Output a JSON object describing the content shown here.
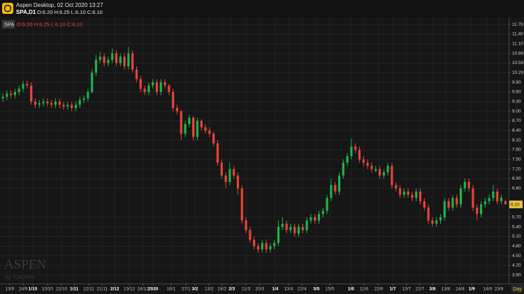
{
  "header": {
    "app_title": "Aspen Desktop, 02 Oct 2020 13:27",
    "symbol": "SPA,D1",
    "ohlc": "O:6.20 H:6.25 L:6.10 C:6.10"
  },
  "legend": {
    "symbol": "SPA",
    "ohlc": "O:6.20 H:6.25 L:6.10 C:6.10"
  },
  "watermark": {
    "brand": "ASPEN",
    "by": "by ThaiQuest"
  },
  "period": "Day",
  "chart_data": {
    "type": "candlestick",
    "up_color": "#1fb34a",
    "down_color": "#e8443a",
    "grid": true,
    "ylim": [
      3.68,
      11.92
    ],
    "yticks": [
      {
        "value": 3.9,
        "label": "3.90"
      },
      {
        "value": 4.2,
        "label": "4.20"
      },
      {
        "value": 4.5,
        "label": "4.50"
      },
      {
        "value": 4.8,
        "label": "4.80"
      },
      {
        "value": 5.1,
        "label": "5.10"
      },
      {
        "value": 5.4,
        "label": "5.40"
      },
      {
        "value": 5.7,
        "label": "5.70"
      },
      {
        "value": 6.6,
        "label": "6.60"
      },
      {
        "value": 6.9,
        "label": "6.90"
      },
      {
        "value": 7.2,
        "label": "7.20"
      },
      {
        "value": 7.5,
        "label": "7.50"
      },
      {
        "value": 7.8,
        "label": "7.80"
      },
      {
        "value": 8.1,
        "label": "8.10"
      },
      {
        "value": 8.4,
        "label": "8.40"
      },
      {
        "value": 8.7,
        "label": "8.70"
      },
      {
        "value": 9,
        "label": "9.00"
      },
      {
        "value": 9.3,
        "label": "9.30"
      },
      {
        "value": 9.6,
        "label": "9.60"
      },
      {
        "value": 9.9,
        "label": "9.90"
      },
      {
        "value": 10.2,
        "label": "10.20"
      },
      {
        "value": 10.5,
        "label": "10.50"
      },
      {
        "value": 10.8,
        "label": "10.80"
      },
      {
        "value": 11.1,
        "label": "11.10"
      },
      {
        "value": 11.4,
        "label": "11.40"
      },
      {
        "value": 11.7,
        "label": "11.70"
      }
    ],
    "last_price": {
      "value": 6.1,
      "label": "6.10"
    },
    "xlim": [
      -0.7,
      124.8
    ],
    "xticks": [
      {
        "value": 1.7,
        "label": "13/9"
      },
      {
        "value": 5,
        "label": "24/9"
      },
      {
        "value": 7.4,
        "label": "1/10",
        "bold": true
      },
      {
        "value": 11,
        "label": "10/10"
      },
      {
        "value": 14.5,
        "label": "22/10"
      },
      {
        "value": 17.6,
        "label": "1/11",
        "bold": true
      },
      {
        "value": 21.2,
        "label": "12/11"
      },
      {
        "value": 24.5,
        "label": "21/11"
      },
      {
        "value": 27.6,
        "label": "2/12",
        "bold": true
      },
      {
        "value": 31.2,
        "label": "13/12"
      },
      {
        "value": 34.6,
        "label": "24/12"
      },
      {
        "value": 37.1,
        "label": "2020",
        "bold": true
      },
      {
        "value": 41.5,
        "label": "16/1"
      },
      {
        "value": 45.2,
        "label": "27/1"
      },
      {
        "value": 47.4,
        "label": "3/2",
        "bold": true
      },
      {
        "value": 50.9,
        "label": "13/2"
      },
      {
        "value": 54.1,
        "label": "24/2"
      },
      {
        "value": 56.5,
        "label": "2/3",
        "bold": true
      },
      {
        "value": 60,
        "label": "11/3"
      },
      {
        "value": 63.4,
        "label": "20/3"
      },
      {
        "value": 67.2,
        "label": "1/4",
        "bold": true
      },
      {
        "value": 70.5,
        "label": "13/4"
      },
      {
        "value": 73.8,
        "label": "22/4"
      },
      {
        "value": 77.4,
        "label": "5/5",
        "bold": true
      },
      {
        "value": 80.7,
        "label": "15/5"
      },
      {
        "value": 85.9,
        "label": "1/6",
        "bold": true
      },
      {
        "value": 89.1,
        "label": "11/6"
      },
      {
        "value": 92.7,
        "label": "22/6"
      },
      {
        "value": 96.2,
        "label": "1/7",
        "bold": true
      },
      {
        "value": 99.6,
        "label": "13/7"
      },
      {
        "value": 102.9,
        "label": "22/7"
      },
      {
        "value": 106,
        "label": "3/8",
        "bold": true
      },
      {
        "value": 109.3,
        "label": "13/8"
      },
      {
        "value": 112.8,
        "label": "24/8"
      },
      {
        "value": 115.7,
        "label": "1/9",
        "bold": true
      },
      {
        "value": 119.6,
        "label": "14/9"
      },
      {
        "value": 122.4,
        "label": "23/9"
      }
    ],
    "candles": [
      [
        9.4,
        9.55,
        9.3,
        9.45
      ],
      [
        9.45,
        9.65,
        9.35,
        9.55
      ],
      [
        9.55,
        9.65,
        9.4,
        9.5
      ],
      [
        9.5,
        9.7,
        9.4,
        9.6
      ],
      [
        9.6,
        9.8,
        9.5,
        9.7
      ],
      [
        9.7,
        9.95,
        9.6,
        9.85
      ],
      [
        9.85,
        9.95,
        9.7,
        9.8
      ],
      [
        9.8,
        9.9,
        9.2,
        9.3
      ],
      [
        9.3,
        9.4,
        9.1,
        9.2
      ],
      [
        9.2,
        9.35,
        9.1,
        9.25
      ],
      [
        9.25,
        9.4,
        9.15,
        9.3
      ],
      [
        9.3,
        9.4,
        9.15,
        9.25
      ],
      [
        9.25,
        9.35,
        9.1,
        9.2
      ],
      [
        9.2,
        9.4,
        9.1,
        9.3
      ],
      [
        9.3,
        9.4,
        9.1,
        9.2
      ],
      [
        9.2,
        9.3,
        9.05,
        9.15
      ],
      [
        9.15,
        9.3,
        9.05,
        9.2
      ],
      [
        9.2,
        9.3,
        9,
        9.1
      ],
      [
        9.1,
        9.3,
        9,
        9.2
      ],
      [
        9.2,
        9.45,
        9.1,
        9.35
      ],
      [
        9.35,
        9.5,
        9.25,
        9.4
      ],
      [
        9.4,
        9.7,
        9.3,
        9.6
      ],
      [
        9.6,
        10.3,
        9.55,
        10.2
      ],
      [
        10.2,
        10.75,
        10.1,
        10.6
      ],
      [
        10.6,
        10.85,
        10.5,
        10.7
      ],
      [
        10.7,
        10.8,
        10.4,
        10.5
      ],
      [
        10.5,
        10.7,
        10.4,
        10.6
      ],
      [
        10.6,
        10.95,
        10.5,
        10.8
      ],
      [
        10.8,
        10.9,
        10.4,
        10.5
      ],
      [
        10.5,
        10.8,
        10.4,
        10.7
      ],
      [
        10.7,
        10.8,
        10.3,
        10.4
      ],
      [
        10.4,
        11,
        10.3,
        10.8
      ],
      [
        10.8,
        10.9,
        10.2,
        10.3
      ],
      [
        10.3,
        10.4,
        9.9,
        10
      ],
      [
        10,
        10.1,
        9.6,
        9.7
      ],
      [
        9.7,
        9.8,
        9.5,
        9.6
      ],
      [
        9.6,
        9.9,
        9.5,
        9.8
      ],
      [
        9.8,
        10,
        9.7,
        9.9
      ],
      [
        9.9,
        10,
        9.5,
        9.6
      ],
      [
        9.6,
        10,
        9.5,
        9.9
      ],
      [
        9.9,
        10,
        9.7,
        9.8
      ],
      [
        9.8,
        9.85,
        9.5,
        9.6
      ],
      [
        9.6,
        9.7,
        9,
        9.1
      ],
      [
        9.1,
        9.2,
        8.9,
        9
      ],
      [
        9,
        9.05,
        8.1,
        8.3
      ],
      [
        8.3,
        8.7,
        8.2,
        8.6
      ],
      [
        8.6,
        8.9,
        8.5,
        8.8
      ],
      [
        8.8,
        8.85,
        8.1,
        8.2
      ],
      [
        8.2,
        8.8,
        8.1,
        8.7
      ],
      [
        8.7,
        8.75,
        8.4,
        8.5
      ],
      [
        8.5,
        8.6,
        8.3,
        8.4
      ],
      [
        8.4,
        8.5,
        8.2,
        8.3
      ],
      [
        8.3,
        8.35,
        7.9,
        8
      ],
      [
        8,
        8.1,
        7.3,
        7.4
      ],
      [
        7.4,
        7.5,
        6.9,
        7
      ],
      [
        7,
        7.1,
        6.6,
        6.8
      ],
      [
        6.8,
        7.4,
        6.7,
        7.2
      ],
      [
        7.2,
        7.3,
        6.9,
        7
      ],
      [
        7,
        7.1,
        6.4,
        6.6
      ],
      [
        6.6,
        6.7,
        5.5,
        5.6
      ],
      [
        5.6,
        5.7,
        5.2,
        5.3
      ],
      [
        5.3,
        5.4,
        4.9,
        5
      ],
      [
        5,
        5.1,
        4.7,
        4.8
      ],
      [
        4.8,
        4.9,
        4.6,
        4.7
      ],
      [
        4.7,
        5,
        4.6,
        4.9
      ],
      [
        4.9,
        5,
        4.6,
        4.7
      ],
      [
        4.7,
        4.9,
        4.6,
        4.8
      ],
      [
        4.8,
        5,
        4.7,
        4.9
      ],
      [
        4.9,
        5.6,
        4.8,
        5.4
      ],
      [
        5.4,
        5.7,
        5.3,
        5.5
      ],
      [
        5.5,
        5.6,
        5.2,
        5.3
      ],
      [
        5.3,
        5.5,
        5.2,
        5.4
      ],
      [
        5.4,
        5.5,
        5.1,
        5.2
      ],
      [
        5.2,
        5.5,
        5.1,
        5.4
      ],
      [
        5.4,
        5.5,
        5.2,
        5.3
      ],
      [
        5.3,
        5.7,
        5.2,
        5.6
      ],
      [
        5.6,
        5.8,
        5.5,
        5.7
      ],
      [
        5.7,
        5.8,
        5.5,
        5.6
      ],
      [
        5.6,
        5.9,
        5.5,
        5.8
      ],
      [
        5.8,
        6,
        5.7,
        5.9
      ],
      [
        5.9,
        6.4,
        5.8,
        6.3
      ],
      [
        6.3,
        6.9,
        6.2,
        6.7
      ],
      [
        6.7,
        6.8,
        6.4,
        6.5
      ],
      [
        6.5,
        7.1,
        6.4,
        7
      ],
      [
        7,
        7.5,
        6.9,
        7.4
      ],
      [
        7.4,
        7.7,
        7.3,
        7.6
      ],
      [
        7.6,
        8.15,
        7.5,
        7.9
      ],
      [
        7.9,
        8,
        7.7,
        7.8
      ],
      [
        7.8,
        7.9,
        7.4,
        7.5
      ],
      [
        7.5,
        7.6,
        7.3,
        7.4
      ],
      [
        7.4,
        7.5,
        7.2,
        7.3
      ],
      [
        7.3,
        7.4,
        7.1,
        7.2
      ],
      [
        7.15,
        7.3,
        7.1,
        7.2
      ],
      [
        7.2,
        7.3,
        6.9,
        7
      ],
      [
        7,
        7.2,
        6.9,
        7.1
      ],
      [
        7.1,
        7.4,
        7,
        7.3
      ],
      [
        7.3,
        7.4,
        6.6,
        6.7
      ],
      [
        6.7,
        6.8,
        6.5,
        6.6
      ],
      [
        6.6,
        6.7,
        6.3,
        6.4
      ],
      [
        6.4,
        6.6,
        6.3,
        6.5
      ],
      [
        6.5,
        6.6,
        6.3,
        6.4
      ],
      [
        6.4,
        6.5,
        6.2,
        6.3
      ],
      [
        6.3,
        6.6,
        6.2,
        6.5
      ],
      [
        6.5,
        6.6,
        6.1,
        6.2
      ],
      [
        6.2,
        6.3,
        5.9,
        6
      ],
      [
        6,
        6.1,
        5.5,
        5.6
      ],
      [
        5.6,
        5.7,
        5.4,
        5.5
      ],
      [
        5.5,
        5.7,
        5.4,
        5.6
      ],
      [
        5.6,
        5.8,
        5.5,
        5.7
      ],
      [
        5.7,
        6.3,
        5.6,
        6.2
      ],
      [
        6.2,
        6.3,
        5.9,
        6
      ],
      [
        6,
        6.4,
        5.9,
        6.3
      ],
      [
        6.3,
        6.4,
        6,
        6.1
      ],
      [
        6.1,
        6.7,
        6,
        6.6
      ],
      [
        6.6,
        6.9,
        6.5,
        6.8
      ],
      [
        6.8,
        6.9,
        6.5,
        6.6
      ],
      [
        6.6,
        6.7,
        5.9,
        6
      ],
      [
        6,
        6.1,
        5.6,
        5.8
      ],
      [
        5.8,
        6.2,
        5.7,
        6.1
      ],
      [
        6.1,
        6.3,
        6,
        6.2
      ],
      [
        6.2,
        6.4,
        6.1,
        6.3
      ],
      [
        6.3,
        6.7,
        6.2,
        6.5
      ],
      [
        6.5,
        6.6,
        6.1,
        6.2
      ],
      [
        6.2,
        6.4,
        6.1,
        6.3
      ],
      [
        6.2,
        6.25,
        6.1,
        6.1
      ]
    ]
  }
}
